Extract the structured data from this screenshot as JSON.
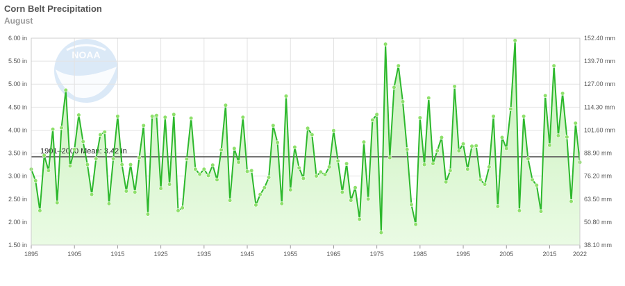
{
  "title": "Corn Belt Precipitation",
  "subtitle": "August",
  "colors": {
    "line": "#2db82d",
    "point": "#8ee06b",
    "area_top": "#c6f0b8",
    "area_bottom": "#eafbe4",
    "mean_line": "#555555",
    "grid": "#e3e3e3"
  },
  "chart_data": {
    "type": "area",
    "title": "Corn Belt Precipitation",
    "subtitle": "August",
    "x_start": 1895,
    "x_end": 2022,
    "xlim": [
      1895,
      2022
    ],
    "ylim": [
      1.5,
      6.0
    ],
    "ylim_mm": [
      38.1,
      152.4
    ],
    "x_ticks": [
      "1895",
      "1905",
      "1915",
      "1925",
      "1935",
      "1945",
      "1955",
      "1965",
      "1975",
      "1985",
      "1995",
      "2005",
      "2015",
      "2022"
    ],
    "y_ticks_left": [
      "1.50 in",
      "2.00 in",
      "2.50 in",
      "3.00 in",
      "3.50 in",
      "4.00 in",
      "4.50 in",
      "5.00 in",
      "5.50 in",
      "6.00 in"
    ],
    "y_ticks_right": [
      "38.10 mm",
      "50.80 mm",
      "63.50 mm",
      "76.20 mm",
      "88.90 mm",
      "101.60 mm",
      "114.30 mm",
      "127.00 mm",
      "139.70 mm",
      "152.40 mm"
    ],
    "grid": true,
    "mean": {
      "label": "1901–2000 Mean: 3.42 in",
      "value": 3.42
    },
    "series": [
      {
        "unit": "in",
        "values": [
          3.15,
          2.9,
          2.25,
          3.45,
          3.12,
          4.02,
          2.42,
          4.05,
          4.87,
          3.22,
          3.58,
          4.33,
          3.75,
          3.25,
          2.6,
          3.38,
          3.9,
          3.96,
          2.4,
          3.38,
          4.3,
          3.25,
          2.67,
          3.25,
          2.65,
          3.4,
          4.1,
          2.17,
          4.3,
          4.32,
          2.73,
          4.28,
          2.82,
          4.34,
          2.25,
          2.31,
          3.37,
          4.26,
          3.15,
          3.04,
          3.15,
          3.01,
          3.24,
          2.92,
          3.57,
          4.54,
          2.47,
          3.6,
          3.3,
          4.28,
          3.1,
          3.12,
          2.37,
          2.6,
          2.75,
          2.97,
          4.1,
          3.73,
          2.4,
          4.74,
          2.7,
          3.63,
          3.18,
          2.95,
          4.04,
          3.9,
          3.0,
          3.09,
          3.03,
          3.2,
          3.99,
          3.33,
          2.65,
          3.27,
          2.47,
          2.75,
          2.06,
          3.74,
          2.5,
          4.22,
          4.34,
          1.77,
          5.87,
          3.4,
          4.93,
          5.4,
          4.62,
          3.58,
          2.38,
          1.95,
          4.27,
          3.25,
          4.7,
          3.27,
          3.55,
          3.84,
          2.87,
          3.12,
          4.95,
          3.55,
          3.7,
          3.15,
          3.65,
          3.66,
          2.92,
          2.82,
          3.2,
          4.3,
          2.34,
          3.84,
          3.6,
          4.46,
          5.95,
          2.25,
          4.3,
          3.38,
          2.92,
          2.8,
          2.23,
          4.75,
          3.67,
          5.4,
          3.88,
          4.8,
          3.85,
          2.45,
          4.15,
          3.3
        ]
      }
    ]
  }
}
